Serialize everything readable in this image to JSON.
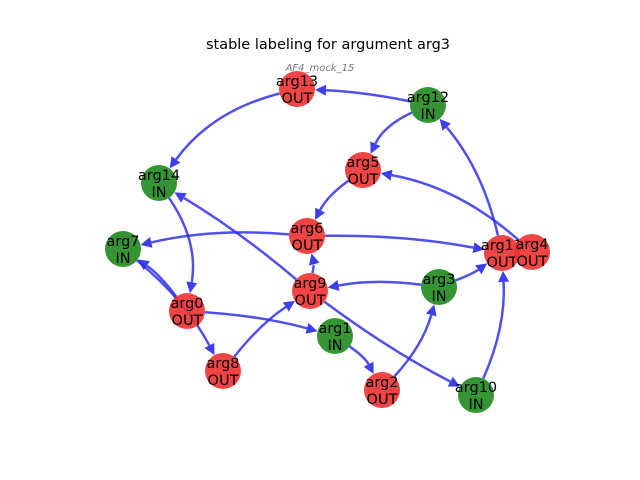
{
  "title": "stable labeling for argument arg3",
  "subtitle": "AF4_mock_15",
  "colors": {
    "in": "#1f8a1f",
    "out": "#f03030",
    "edge": "#2a2ae6"
  },
  "nodes": [
    {
      "id": "arg13",
      "label": "OUT"
    },
    {
      "id": "arg12",
      "label": "IN"
    },
    {
      "id": "arg5",
      "label": "OUT"
    },
    {
      "id": "arg14",
      "label": "IN"
    },
    {
      "id": "arg6",
      "label": "OUT"
    },
    {
      "id": "arg7",
      "label": "IN"
    },
    {
      "id": "arg11",
      "label": "OUT"
    },
    {
      "id": "arg4",
      "label": "OUT"
    },
    {
      "id": "arg3",
      "label": "IN"
    },
    {
      "id": "arg9",
      "label": "OUT"
    },
    {
      "id": "arg0",
      "label": "OUT"
    },
    {
      "id": "arg1",
      "label": "IN"
    },
    {
      "id": "arg8",
      "label": "OUT"
    },
    {
      "id": "arg2",
      "label": "OUT"
    },
    {
      "id": "arg10",
      "label": "IN"
    }
  ],
  "edges": [
    {
      "from": "arg13",
      "to": "arg14"
    },
    {
      "from": "arg12",
      "to": "arg13"
    },
    {
      "from": "arg12",
      "to": "arg5"
    },
    {
      "from": "arg5",
      "to": "arg6"
    },
    {
      "from": "arg11",
      "to": "arg12"
    },
    {
      "from": "arg4",
      "to": "arg5"
    },
    {
      "from": "arg6",
      "to": "arg7"
    },
    {
      "from": "arg6",
      "to": "arg11"
    },
    {
      "from": "arg14",
      "to": "arg0"
    },
    {
      "from": "arg9",
      "to": "arg14"
    },
    {
      "from": "arg9",
      "to": "arg6"
    },
    {
      "from": "arg3",
      "to": "arg9"
    },
    {
      "from": "arg3",
      "to": "arg11"
    },
    {
      "from": "arg0",
      "to": "arg7"
    },
    {
      "from": "arg0",
      "to": "arg1"
    },
    {
      "from": "arg7",
      "to": "arg8"
    },
    {
      "from": "arg8",
      "to": "arg9"
    },
    {
      "from": "arg1",
      "to": "arg2"
    },
    {
      "from": "arg9",
      "to": "arg10"
    },
    {
      "from": "arg2",
      "to": "arg3"
    },
    {
      "from": "arg10",
      "to": "arg11"
    }
  ]
}
